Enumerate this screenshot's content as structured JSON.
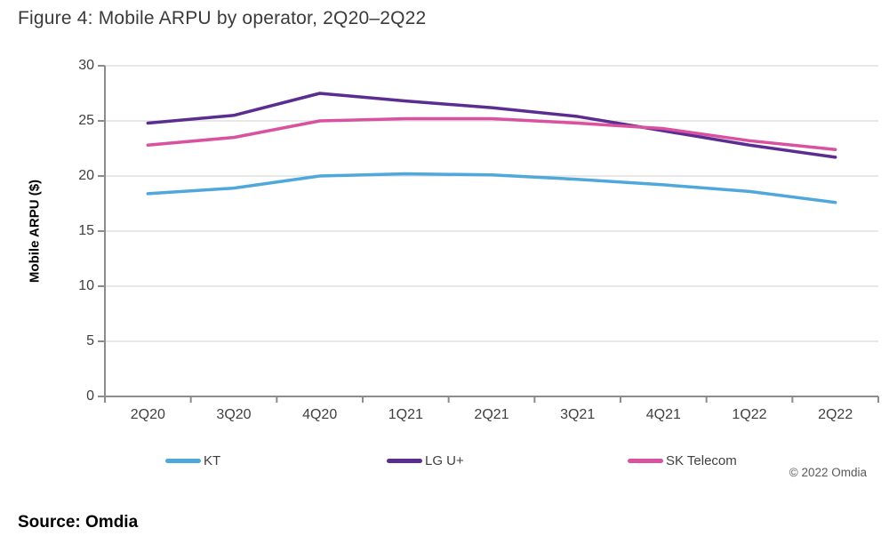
{
  "header": {
    "title": "Figure 4: Mobile ARPU by operator, 2Q20–2Q22"
  },
  "chart_data": {
    "type": "line",
    "title": "Figure 4: Mobile ARPU by operator, 2Q20–2Q22",
    "xlabel": "",
    "ylabel": "Mobile ARPU ($)",
    "ylim": [
      0,
      30
    ],
    "yticks": [
      0,
      5,
      10,
      15,
      20,
      25,
      30
    ],
    "grid": "horizontal",
    "legend_position": "bottom",
    "categories": [
      "2Q20",
      "3Q20",
      "4Q20",
      "1Q21",
      "2Q21",
      "3Q21",
      "4Q21",
      "1Q22",
      "2Q22"
    ],
    "series": [
      {
        "name": "KT",
        "color": "#4FA8DC",
        "values": [
          18.4,
          18.9,
          20.0,
          20.2,
          20.1,
          19.7,
          19.2,
          18.6,
          17.6
        ]
      },
      {
        "name": "LG U+",
        "color": "#5B2D90",
        "values": [
          24.8,
          25.5,
          27.5,
          26.8,
          26.2,
          25.4,
          24.1,
          22.8,
          21.7
        ]
      },
      {
        "name": "SK Telecom",
        "color": "#D9519F",
        "values": [
          22.8,
          23.5,
          25.0,
          25.2,
          25.2,
          24.8,
          24.3,
          23.2,
          22.4
        ]
      }
    ]
  },
  "colors": {
    "gridline": "#D9D9D9",
    "axis": "#8C8C8C",
    "tick_text": "#3F3F3F",
    "copyright_text": "#595959"
  },
  "copyright": "© 2022 Omdia",
  "footer": {
    "source": "Source: Omdia"
  }
}
